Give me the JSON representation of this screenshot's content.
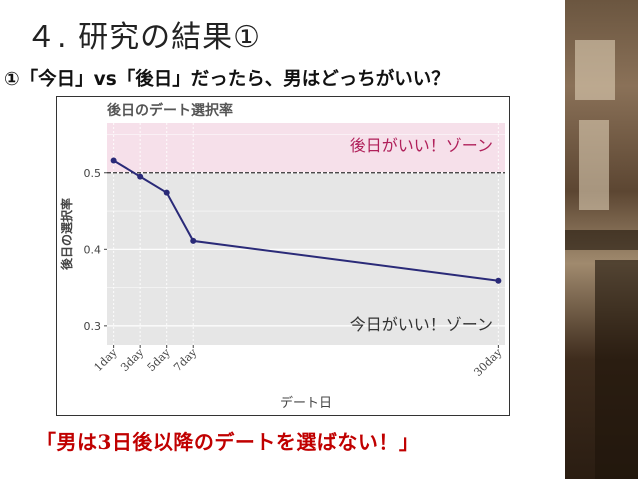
{
  "slide": {
    "title": "４. 研究の結果①",
    "subtitle": "①「今日」vs「後日」だったら、男はどっちがいい？",
    "conclusion": "「男は3日後以降のデートを選ばない！」"
  },
  "chart_data": {
    "type": "line",
    "title": "後日のデート選択率",
    "xlabel": "デート日",
    "ylabel": "後日の選択率",
    "x": [
      1,
      3,
      5,
      7,
      30
    ],
    "x_tick_labels": [
      "1day",
      "3day",
      "5day",
      "7day",
      "30day"
    ],
    "series": [
      {
        "values": [
          0.516,
          0.495,
          0.474,
          0.411,
          0.359
        ]
      }
    ],
    "y_ticks": [
      0.3,
      0.4,
      0.5
    ],
    "ylim": [
      0.275,
      0.565
    ],
    "reference_line": 0.5,
    "zones": {
      "upper_label": "後日がいい！ゾーン",
      "lower_label": "今日がいい！ゾーン"
    },
    "colors": {
      "line": "#2a2a78",
      "upper_zone": "#f6e0ea",
      "lower_zone": "#e6e6e6",
      "zone_text": "#b0205a",
      "lower_zone_text": "#333333"
    }
  }
}
